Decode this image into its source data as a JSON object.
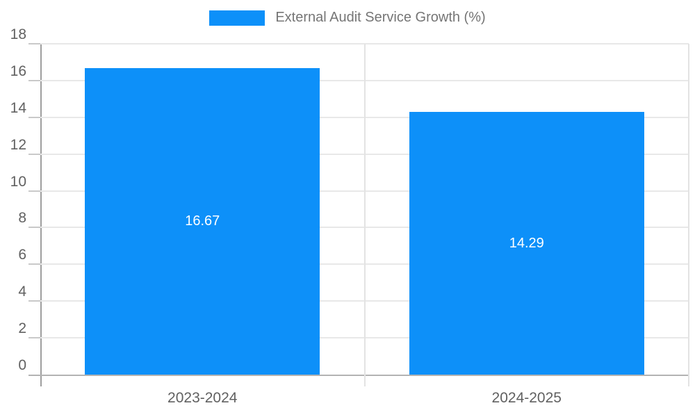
{
  "chart_data": {
    "type": "bar",
    "title": "",
    "legend": "External Audit Service Growth (%)",
    "legend_position": "top-center",
    "categories": [
      "2023-2024",
      "2024-2025"
    ],
    "values": [
      16.67,
      14.29
    ],
    "value_labels": [
      "16.67",
      "14.29"
    ],
    "ylabel": "",
    "xlabel": "",
    "ylim": [
      0,
      18
    ],
    "ytick_step": 2,
    "grid": true,
    "colors": {
      "bar": "#0d90f9",
      "gridline": "#e8e8e8",
      "tick_dash": "#c9c9c9",
      "axis_left": "#9e9e9e",
      "axis_bottom": "#b3b3b3",
      "separator": "#e3e3e3",
      "tick_text": "#616161",
      "legend_text": "#757575",
      "value_text": "#ffffff",
      "background": "#ffffff"
    }
  }
}
